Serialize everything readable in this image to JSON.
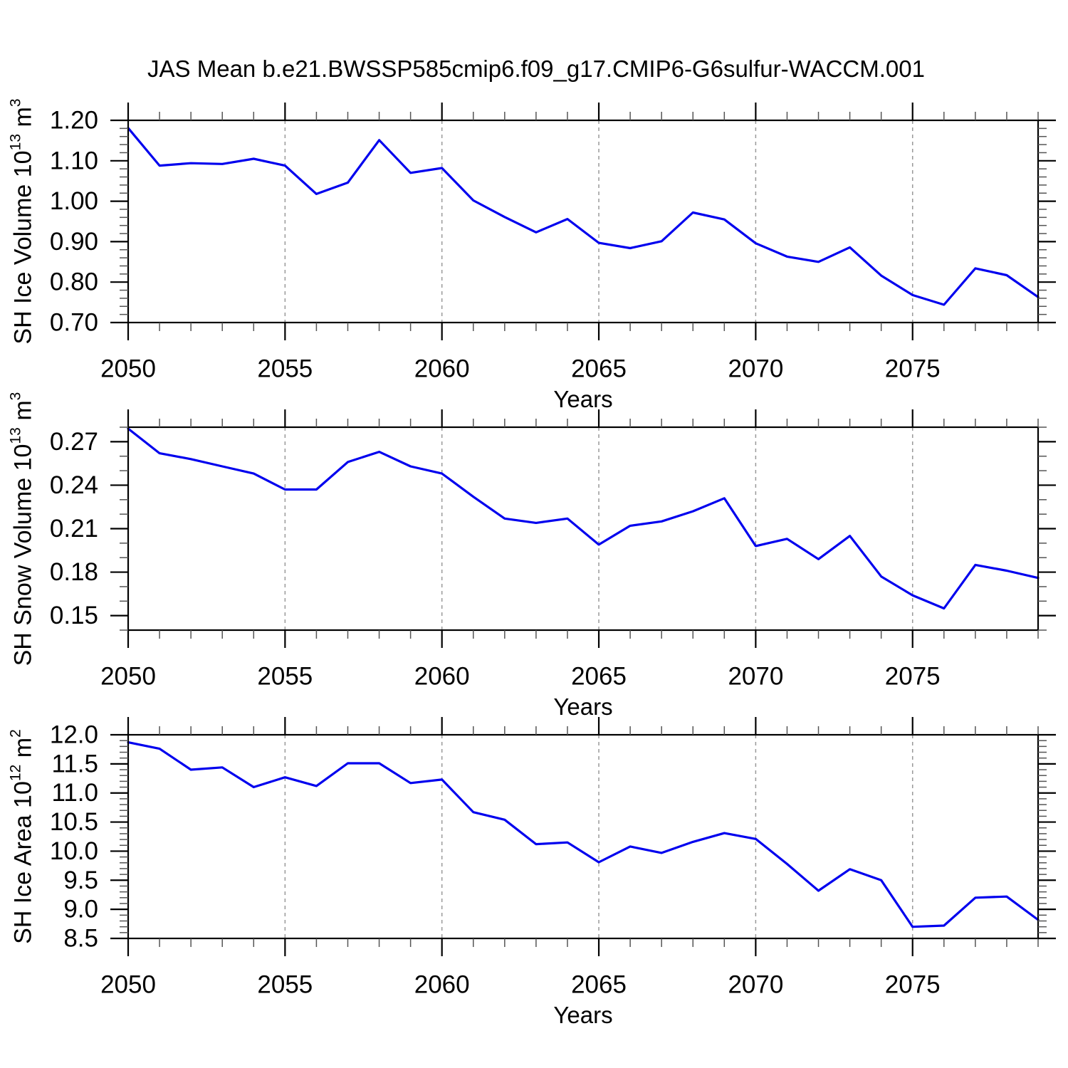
{
  "title": "JAS Mean b.e21.BWSSP585cmip6.f09_g17.CMIP6-G6sulfur-WACCM.001",
  "colors": {
    "line": "#0000ee",
    "frame": "#000000",
    "gridline": "#999999",
    "minor_tick": "#555555",
    "background": "#ffffff",
    "text": "#000000"
  },
  "x_axis": {
    "label": "Years",
    "range": [
      2050,
      2079
    ],
    "major_ticks": [
      2050,
      2055,
      2060,
      2065,
      2070,
      2075
    ],
    "minor_step": 1,
    "gridline_years": [
      2055,
      2060,
      2065,
      2070,
      2075
    ]
  },
  "chart_data": [
    {
      "type": "line",
      "title": "SH Ice Volume",
      "ylabel_text": "SH Ice Volume 10^13 m^3",
      "ylabel_parts": {
        "pre": "SH Ice Volume 10",
        "sup1": "13",
        "mid": " m",
        "sup2": "3"
      },
      "xlabel": "Years",
      "x": [
        2050,
        2051,
        2052,
        2053,
        2054,
        2055,
        2056,
        2057,
        2058,
        2059,
        2060,
        2061,
        2062,
        2063,
        2064,
        2065,
        2066,
        2067,
        2068,
        2069,
        2070,
        2071,
        2072,
        2073,
        2074,
        2075,
        2076,
        2077,
        2078,
        2079
      ],
      "values": [
        1.181,
        1.088,
        1.094,
        1.092,
        1.105,
        1.088,
        1.018,
        1.046,
        1.151,
        1.07,
        1.082,
        1.002,
        0.961,
        0.923,
        0.956,
        0.897,
        0.884,
        0.901,
        0.972,
        0.955,
        0.896,
        0.863,
        0.85,
        0.886,
        0.816,
        0.768,
        0.744,
        0.834,
        0.817,
        0.763
      ],
      "ylim": [
        0.7,
        1.2
      ],
      "y_tick_labels": [
        "0.70",
        "0.80",
        "0.90",
        "1.00",
        "1.10",
        "1.20"
      ],
      "y_minor_step": 0.02,
      "grid": "vertical-dashed",
      "legend": "none"
    },
    {
      "type": "line",
      "title": "SH Snow Volume",
      "ylabel_text": "SH Snow Volume 10^13 m^3",
      "ylabel_parts": {
        "pre": "SH Snow Volume 10",
        "sup1": "13",
        "mid": " m",
        "sup2": "3"
      },
      "xlabel": "Years",
      "x": [
        2050,
        2051,
        2052,
        2053,
        2054,
        2055,
        2056,
        2057,
        2058,
        2059,
        2060,
        2061,
        2062,
        2063,
        2064,
        2065,
        2066,
        2067,
        2068,
        2069,
        2070,
        2071,
        2072,
        2073,
        2074,
        2075,
        2076,
        2077,
        2078,
        2079
      ],
      "values": [
        0.279,
        0.262,
        0.258,
        0.253,
        0.248,
        0.237,
        0.237,
        0.256,
        0.263,
        0.253,
        0.248,
        0.232,
        0.217,
        0.214,
        0.217,
        0.199,
        0.212,
        0.215,
        0.222,
        0.231,
        0.198,
        0.203,
        0.189,
        0.205,
        0.177,
        0.164,
        0.155,
        0.185,
        0.181,
        0.176
      ],
      "ylim": [
        0.14,
        0.28
      ],
      "y_tick_labels": [
        "0.15",
        "0.18",
        "0.21",
        "0.24",
        "0.27"
      ],
      "y_minor_step": 0.01,
      "grid": "vertical-dashed",
      "legend": "none"
    },
    {
      "type": "line",
      "title": "SH Ice Area",
      "ylabel_text": "SH Ice Area 10^12 m^2",
      "ylabel_parts": {
        "pre": "SH Ice Area 10",
        "sup1": "12",
        "mid": " m",
        "sup2": "2"
      },
      "xlabel": "Years",
      "x": [
        2050,
        2051,
        2052,
        2053,
        2054,
        2055,
        2056,
        2057,
        2058,
        2059,
        2060,
        2061,
        2062,
        2063,
        2064,
        2065,
        2066,
        2067,
        2068,
        2069,
        2070,
        2071,
        2072,
        2073,
        2074,
        2075,
        2076,
        2077,
        2078,
        2079
      ],
      "values": [
        11.87,
        11.76,
        11.4,
        11.44,
        11.1,
        11.27,
        11.12,
        11.51,
        11.51,
        11.17,
        11.23,
        10.67,
        10.54,
        10.12,
        10.15,
        9.81,
        10.08,
        9.97,
        10.16,
        10.31,
        10.21,
        9.78,
        9.32,
        9.69,
        9.5,
        8.7,
        8.72,
        9.2,
        9.22,
        8.82
      ],
      "ylim": [
        8.5,
        12.0
      ],
      "y_tick_labels": [
        "8.5",
        "9.0",
        "9.5",
        "10.0",
        "10.5",
        "11.0",
        "11.5",
        "12.0"
      ],
      "y_minor_step": 0.1,
      "grid": "vertical-dashed",
      "legend": "none"
    }
  ]
}
